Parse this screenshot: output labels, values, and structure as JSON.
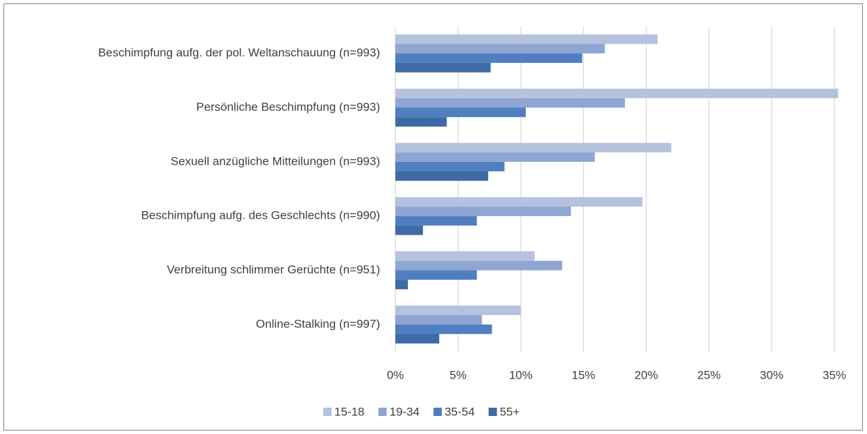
{
  "chart_data": {
    "type": "bar",
    "orientation": "horizontal",
    "categories": [
      "Beschimpfung aufg. der pol. Weltanschauung (n=993)",
      "Persönliche Beschimpfung (n=993)",
      "Sexuell anzügliche Mitteilungen (n=993)",
      "Beschimpfung aufg. des Geschlechts (n=990)",
      "Verbreitung schlimmer Gerüchte (n=951)",
      "Online-Stalking (n=997)"
    ],
    "series": [
      {
        "name": "15-18",
        "color": "#b4c2de",
        "values": [
          20.9,
          35.3,
          22.0,
          19.7,
          11.1,
          10.0
        ]
      },
      {
        "name": "19-34",
        "color": "#8fa6d2",
        "values": [
          16.7,
          18.3,
          15.9,
          14.0,
          13.3,
          6.9
        ]
      },
      {
        "name": "35-54",
        "color": "#4f7fc0",
        "values": [
          14.9,
          10.4,
          8.7,
          6.5,
          6.5,
          7.7
        ]
      },
      {
        "name": "55+",
        "color": "#3e6aa6",
        "values": [
          7.6,
          4.1,
          7.4,
          2.2,
          1.0,
          3.5
        ]
      }
    ],
    "xlim": [
      0,
      35
    ],
    "xticks": [
      {
        "value": 0,
        "label": "0%"
      },
      {
        "value": 5,
        "label": "5%"
      },
      {
        "value": 10,
        "label": "10%"
      },
      {
        "value": 15,
        "label": "15%"
      },
      {
        "value": 20,
        "label": "20%"
      },
      {
        "value": 25,
        "label": "25%"
      },
      {
        "value": 30,
        "label": "30%"
      },
      {
        "value": 35,
        "label": "35%"
      }
    ],
    "grid": true,
    "legend": "bottom"
  }
}
